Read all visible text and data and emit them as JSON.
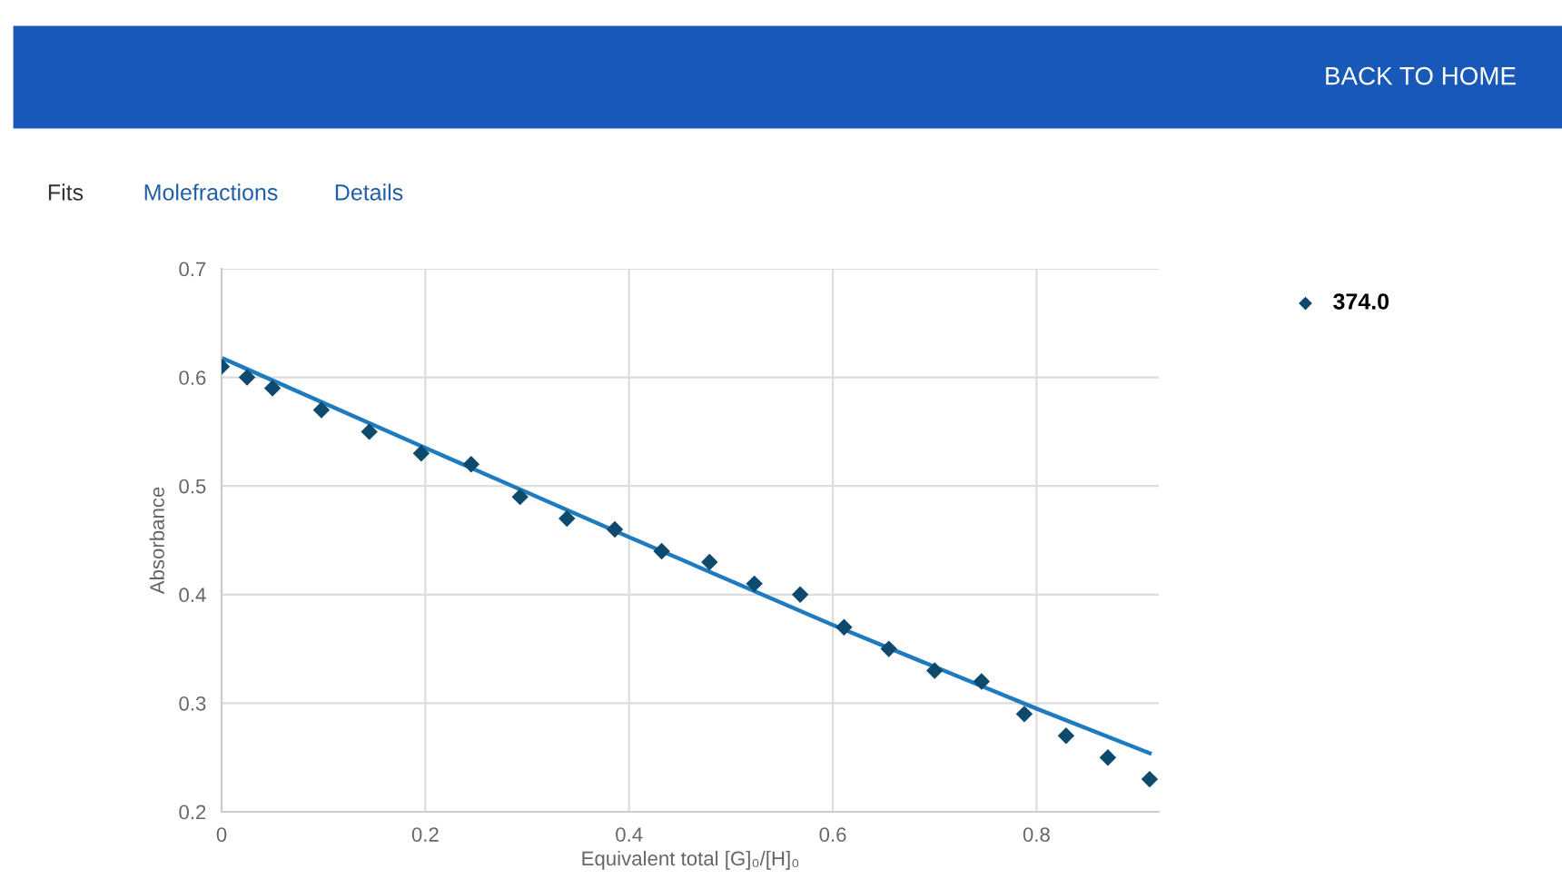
{
  "chart_data": {
    "type": "scatter",
    "xlabel": "Equivalent total [G]₀/[H]₀",
    "ylabel": "Absorbance",
    "annotations": [
      "BACK TO HOME",
      "Fits",
      "Molefractions",
      "Details"
    ],
    "series": [
      {
        "name": "374.0",
        "color": "#0d4a6b",
        "marker": "diamond",
        "x": [
          0,
          0.025,
          0.05,
          0.098,
          0.145,
          0.196,
          0.245,
          0.293,
          0.339,
          0.386,
          0.432,
          0.479,
          0.523,
          0.568,
          0.611,
          0.655,
          0.7,
          0.746,
          0.788,
          0.829,
          0.87,
          0.911
        ],
        "values": [
          0.61,
          0.6,
          0.59,
          0.57,
          0.55,
          0.53,
          0.52,
          0.49,
          0.47,
          0.46,
          0.44,
          0.43,
          0.41,
          0.4,
          0.37,
          0.35,
          0.33,
          0.32,
          0.29,
          0.27,
          0.25,
          0.23
        ]
      },
      {
        "type": "line",
        "color": "#1f7bbf",
        "x": [
          0,
          0.2,
          0.4,
          0.6,
          0.8,
          0.911
        ],
        "values": [
          0.618,
          0.535,
          0.453,
          0.372,
          0.295,
          0.254
        ]
      }
    ],
    "xlim": [
      0,
      0.92
    ],
    "xticks": [
      0,
      0.2,
      0.4,
      0.6,
      0.8
    ],
    "ylim": [
      0.2,
      0.7
    ],
    "yticks": [
      0.2,
      0.3,
      0.4,
      0.5,
      0.6,
      0.7
    ],
    "grid": true,
    "legend": "top right"
  }
}
